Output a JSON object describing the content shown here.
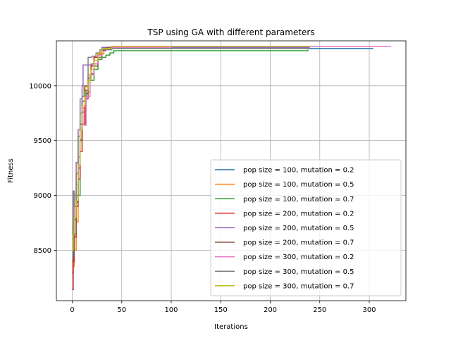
{
  "chart_data": {
    "type": "line",
    "title": "TSP using GA with  different parameters",
    "xlabel": "Iterations",
    "ylabel": "Fitness",
    "xlim": [
      -16,
      337
    ],
    "ylim": [
      8040,
      10410
    ],
    "xticks": [
      0,
      50,
      100,
      150,
      200,
      250,
      300
    ],
    "yticks": [
      8500,
      9000,
      9500,
      10000
    ],
    "ytick_labels": [
      "8500",
      "9000",
      "9500",
      "10000"
    ],
    "grid": true,
    "legend_position": "lower-right",
    "series": [
      {
        "name": "pop size = 100, mutation = 0.2",
        "color": "#1f77b4",
        "x": [
          0,
          1,
          2,
          4,
          6,
          8,
          10,
          13,
          16,
          19,
          22,
          26,
          30,
          40,
          100,
          200,
          304
        ],
        "y": [
          8290,
          8560,
          8780,
          9000,
          9250,
          9510,
          9760,
          9930,
          10070,
          10180,
          10260,
          10300,
          10330,
          10340,
          10340,
          10340,
          10340
        ]
      },
      {
        "name": "pop size = 100, mutation = 0.5",
        "color": "#ff7f0e",
        "x": [
          0,
          1,
          2,
          4,
          6,
          8,
          10,
          13,
          16,
          19,
          22,
          26,
          32,
          40,
          100,
          200,
          240
        ],
        "y": [
          8300,
          8350,
          8500,
          8760,
          9150,
          9500,
          9800,
          9990,
          10100,
          10200,
          10260,
          10290,
          10340,
          10360,
          10360,
          10360,
          10360
        ]
      },
      {
        "name": "pop size = 100, mutation = 0.7",
        "color": "#2ca02c",
        "x": [
          0,
          1,
          2,
          4,
          6,
          8,
          10,
          14,
          18,
          22,
          26,
          30,
          34,
          38,
          42,
          100,
          200,
          238
        ],
        "y": [
          8650,
          8760,
          8900,
          8940,
          9000,
          9500,
          9860,
          9950,
          10050,
          10150,
          10240,
          10260,
          10280,
          10300,
          10320,
          10320,
          10320,
          10330
        ]
      },
      {
        "name": "pop size = 200, mutation = 0.2",
        "color": "#d62728",
        "x": [
          0,
          1,
          2,
          4,
          6,
          8,
          10,
          13,
          16,
          19,
          22,
          26,
          30,
          34,
          50,
          150,
          240
        ],
        "y": [
          8140,
          8400,
          8620,
          8900,
          9150,
          9400,
          9650,
          9880,
          10050,
          10180,
          10260,
          10300,
          10330,
          10350,
          10360,
          10360,
          10360
        ]
      },
      {
        "name": "pop size = 200, mutation = 0.5",
        "color": "#9467bd",
        "x": [
          0,
          1,
          2,
          4,
          6,
          8,
          10,
          11,
          20,
          26,
          30,
          50,
          150,
          240
        ],
        "y": [
          8700,
          8800,
          9000,
          9300,
          9600,
          9880,
          10000,
          10190,
          10200,
          10300,
          10350,
          10350,
          10350,
          10350
        ]
      },
      {
        "name": "pop size = 200, mutation = 0.7",
        "color": "#8c564b",
        "x": [
          0,
          1,
          2,
          4,
          6,
          8,
          10,
          13,
          16,
          19,
          22,
          26,
          30,
          34,
          60,
          150,
          240
        ],
        "y": [
          8400,
          8450,
          8650,
          9000,
          9350,
          9650,
          9860,
          9960,
          10050,
          10110,
          10180,
          10260,
          10320,
          10350,
          10360,
          10360,
          10360
        ]
      },
      {
        "name": "pop size = 300, mutation = 0.2",
        "color": "#e377c2",
        "x": [
          0,
          1,
          2,
          4,
          6,
          8,
          10,
          12,
          14,
          18,
          22,
          26,
          30,
          40,
          100,
          200,
          322
        ],
        "y": [
          8680,
          8750,
          8900,
          9100,
          9350,
          9600,
          9800,
          9640,
          9900,
          10100,
          10200,
          10280,
          10330,
          10350,
          10360,
          10360,
          10360
        ]
      },
      {
        "name": "pop size = 300, mutation = 0.5",
        "color": "#7f7f7f",
        "x": [
          0,
          1,
          2,
          4,
          6,
          8,
          10,
          12,
          16,
          20,
          24,
          28,
          40,
          100,
          200,
          240
        ],
        "y": [
          8600,
          9040,
          8900,
          9200,
          9540,
          9750,
          9900,
          10000,
          10260,
          10270,
          10300,
          10330,
          10340,
          10340,
          10340,
          10340
        ]
      },
      {
        "name": "pop size = 300, mutation = 0.7",
        "color": "#bcbd22",
        "x": [
          0,
          1,
          2,
          4,
          6,
          8,
          10,
          13,
          16,
          19,
          22,
          26,
          30,
          40,
          100,
          200,
          240
        ],
        "y": [
          8500,
          8650,
          8800,
          8950,
          9280,
          9600,
          9820,
          9950,
          10050,
          10150,
          10230,
          10300,
          10340,
          10360,
          10360,
          10360,
          10360
        ]
      }
    ]
  }
}
